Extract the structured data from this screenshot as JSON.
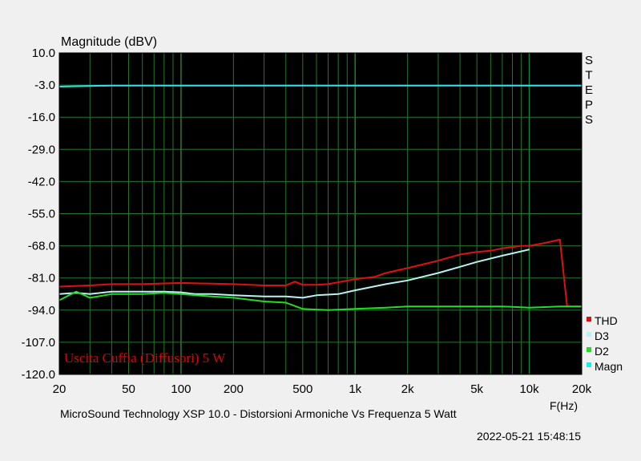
{
  "chart_data": {
    "type": "line",
    "ylabel": "Magnitude (dBV)",
    "xlabel": "F(Hz)",
    "x_scale": "log",
    "xlim": [
      20,
      20000
    ],
    "ylim": [
      -120,
      10
    ],
    "y_ticks": [
      "10.0",
      "-3.0",
      "-16.0",
      "-29.0",
      "-42.0",
      "-55.0",
      "-68.0",
      "-81.0",
      "-94.0",
      "-107.0",
      "-120.0"
    ],
    "x_ticks": [
      {
        "value": 20,
        "label": "20"
      },
      {
        "value": 50,
        "label": "50"
      },
      {
        "value": 100,
        "label": "100"
      },
      {
        "value": 200,
        "label": "200"
      },
      {
        "value": 500,
        "label": "500"
      },
      {
        "value": 1000,
        "label": "1k"
      },
      {
        "value": 2000,
        "label": "2k"
      },
      {
        "value": 5000,
        "label": "5k"
      },
      {
        "value": 10000,
        "label": "10k"
      },
      {
        "value": 20000,
        "label": "20k"
      }
    ],
    "grid": true,
    "background": "#000000",
    "grid_color": "#1f7a2a",
    "legend_position": "bottom-right",
    "side_label": "STEPS",
    "annotation": "Uscita Cuffia (Diffusori) 5 W",
    "caption": "MicroSound Technology XSP 10.0 - Distorsioni Armoniche Vs Frequenza 5 Watt",
    "timestamp": "2022-05-21 15:48:15",
    "series": [
      {
        "name": "THD",
        "color": "#e01010",
        "x": [
          20,
          30,
          40,
          60,
          80,
          100,
          150,
          200,
          300,
          400,
          450,
          500,
          600,
          700,
          1000,
          1300,
          1500,
          2000,
          3000,
          4000,
          5000,
          6000,
          7000,
          8000,
          9000,
          10000,
          12000,
          15000,
          16500,
          20000
        ],
        "y": [
          -84.5,
          -84,
          -83.5,
          -83.5,
          -83.2,
          -83,
          -83.3,
          -83.5,
          -84,
          -84,
          -82.5,
          -83.8,
          -83.8,
          -83.5,
          -81.5,
          -80.5,
          -79,
          -77,
          -74,
          -71.5,
          -70.5,
          -70,
          -69,
          -68.5,
          -68,
          -68,
          -67,
          -65.5,
          -92.5,
          -92.5
        ]
      },
      {
        "name": "D3",
        "color": "#b8f2f2",
        "x": [
          20,
          25,
          30,
          40,
          60,
          80,
          100,
          120,
          150,
          200,
          300,
          400,
          500,
          600,
          800,
          1000,
          1500,
          2000,
          3000,
          4000,
          5000,
          7000,
          10000
        ],
        "y": [
          -87.5,
          -87,
          -87.5,
          -86.5,
          -86.5,
          -86.5,
          -86.8,
          -87.5,
          -87.5,
          -88,
          -88.5,
          -88.5,
          -89,
          -88,
          -87.5,
          -86,
          -83.5,
          -82,
          -79,
          -76.5,
          -74.5,
          -72,
          -69.5
        ]
      },
      {
        "name": "D2",
        "color": "#22dd22",
        "x": [
          20,
          25,
          30,
          40,
          50,
          60,
          80,
          100,
          150,
          200,
          300,
          400,
          500,
          700,
          1000,
          1500,
          2000,
          3000,
          5000,
          7000,
          10000,
          15000,
          20000
        ],
        "y": [
          -90,
          -86.5,
          -89,
          -87.5,
          -87.5,
          -87.5,
          -87,
          -87.5,
          -88.5,
          -89,
          -90.5,
          -91,
          -93.5,
          -94,
          -93.5,
          -93,
          -92.5,
          -92.5,
          -92.5,
          -92.5,
          -93,
          -92.5,
          -92.5
        ]
      },
      {
        "name": "Magn",
        "color": "#22e8e8",
        "x": [
          20,
          40,
          100,
          1000,
          10000,
          20000
        ],
        "y": [
          -3.6,
          -3.2,
          -3.2,
          -3.2,
          -3.2,
          -3.2
        ]
      }
    ]
  }
}
